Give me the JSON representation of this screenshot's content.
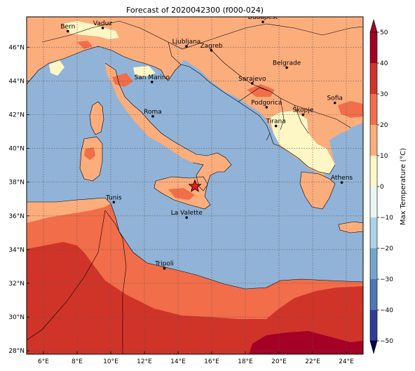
{
  "title": "Forecast of 2020042300 (f000-024)",
  "colorbar": {
    "label": "Max Temperature (°C)",
    "ticks": [
      "50",
      "40",
      "30",
      "20",
      "10",
      "0",
      "−10",
      "−20",
      "−30",
      "−40",
      "−50"
    ]
  },
  "axes": {
    "lon_ticks": [
      "6°E",
      "8°E",
      "10°E",
      "12°E",
      "14°E",
      "16°E",
      "18°E",
      "20°E",
      "22°E",
      "24°E"
    ],
    "lat_ticks": [
      "46°N",
      "44°N",
      "42°N",
      "40°N",
      "38°N",
      "36°N",
      "34°N",
      "32°N",
      "30°N",
      "28°N"
    ]
  },
  "cities": [
    {
      "name": "Bern",
      "lon": 7.45,
      "lat": 46.95
    },
    {
      "name": "Vaduz",
      "lon": 9.52,
      "lat": 47.14
    },
    {
      "name": "Budapest",
      "lon": 19.04,
      "lat": 47.5
    },
    {
      "name": "Ljubljana",
      "lon": 14.5,
      "lat": 46.05
    },
    {
      "name": "Zagreb",
      "lon": 15.98,
      "lat": 45.81
    },
    {
      "name": "San Marino",
      "lon": 12.45,
      "lat": 43.94
    },
    {
      "name": "Sarajevo",
      "lon": 18.41,
      "lat": 43.86
    },
    {
      "name": "Belgrade",
      "lon": 20.46,
      "lat": 44.79
    },
    {
      "name": "Roma",
      "lon": 12.5,
      "lat": 41.9
    },
    {
      "name": "Podgorica",
      "lon": 19.26,
      "lat": 42.44
    },
    {
      "name": "Skopje",
      "lon": 21.43,
      "lat": 42.0
    },
    {
      "name": "Sofia",
      "lon": 23.32,
      "lat": 42.7
    },
    {
      "name": "Tirana",
      "lon": 19.82,
      "lat": 41.33
    },
    {
      "name": "Athens",
      "lon": 23.73,
      "lat": 37.98
    },
    {
      "name": "Tunis",
      "lon": 10.18,
      "lat": 36.81
    },
    {
      "name": "La Valette",
      "lon": 14.51,
      "lat": 35.9
    },
    {
      "name": "Tripoli",
      "lon": 13.19,
      "lat": 32.89
    }
  ],
  "marker": {
    "name": "star",
    "lon": 15.0,
    "lat": 37.75,
    "color": "#e41a1c"
  },
  "colors": {
    "sea": "#91b3d7",
    "c0_10": "#fdf6c5",
    "c10_20": "#fcad7c",
    "c20_30": "#f26d4a",
    "c30_40": "#d03428",
    "c40_50": "#a50026",
    "grid": "#555555"
  }
}
